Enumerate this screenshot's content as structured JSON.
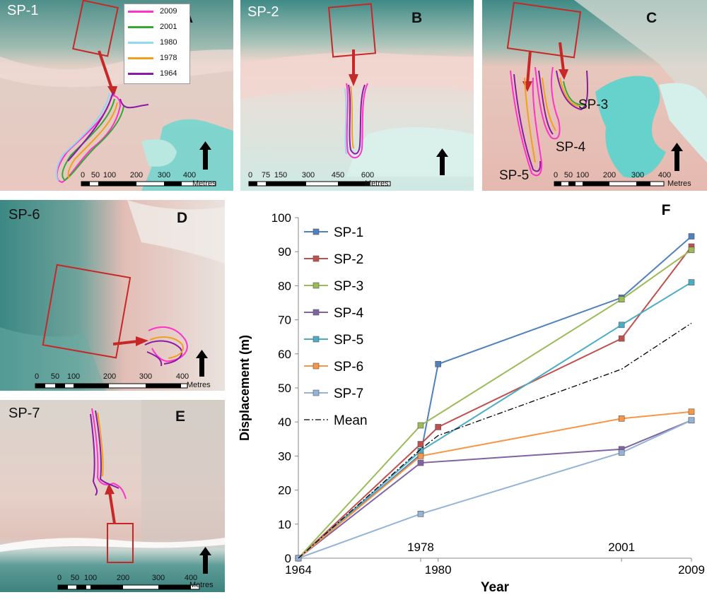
{
  "panels": {
    "a": {
      "title": "SP-1",
      "letter": "A",
      "ticks": [
        "0",
        "50",
        "100",
        "200",
        "300",
        "400"
      ],
      "unit": "Metres"
    },
    "b": {
      "title": "SP-2",
      "letter": "B",
      "ticks": [
        "0",
        "75",
        "150",
        "300",
        "450",
        "600"
      ],
      "unit": "Metres"
    },
    "c": {
      "title": "",
      "letter": "C",
      "ticks": [
        "0",
        "50",
        "100",
        "200",
        "300",
        "400"
      ],
      "unit": "Metres",
      "labels": [
        "SP-3",
        "SP-4",
        "SP-5"
      ]
    },
    "d": {
      "title": "SP-6",
      "letter": "D",
      "ticks": [
        "0",
        "50",
        "100",
        "200",
        "300",
        "400"
      ],
      "unit": "Metres"
    },
    "e": {
      "title": "SP-7",
      "letter": "E",
      "ticks": [
        "0",
        "50",
        "100",
        "200",
        "300",
        "400"
      ],
      "unit": "Metres"
    }
  },
  "year_legend": [
    {
      "label": "2009",
      "color": "#ff33cc"
    },
    {
      "label": "2001",
      "color": "#33a833"
    },
    {
      "label": "1980",
      "color": "#8fd9f2"
    },
    {
      "label": "1978",
      "color": "#f0a020"
    },
    {
      "label": "1964",
      "color": "#8a1aa8"
    }
  ],
  "chart_data": {
    "type": "line",
    "panel_letter": "F",
    "xlabel": "Year",
    "ylabel": "Displacement (m)",
    "ylim": [
      0,
      100
    ],
    "yticks": [
      0,
      10,
      20,
      30,
      40,
      50,
      60,
      70,
      80,
      90,
      100
    ],
    "xlim": [
      1964,
      2009
    ],
    "xticks_bottom": [
      "1964",
      "1980",
      "2009"
    ],
    "xticks_top": [
      "1978",
      "2001"
    ],
    "series": [
      {
        "name": "SP-1",
        "color": "#4f81bd",
        "points": [
          [
            1964,
            0
          ],
          [
            1978,
            30.5
          ],
          [
            1980,
            57
          ],
          [
            2001,
            76.5
          ],
          [
            2009,
            94.5
          ]
        ]
      },
      {
        "name": "SP-2",
        "color": "#c0504d",
        "points": [
          [
            1964,
            0
          ],
          [
            1978,
            33.5
          ],
          [
            1980,
            38.5
          ],
          [
            2001,
            64.5
          ],
          [
            2009,
            91.5
          ]
        ]
      },
      {
        "name": "SP-3",
        "color": "#9bbb59",
        "points": [
          [
            1964,
            0
          ],
          [
            1978,
            39
          ],
          [
            2001,
            76
          ],
          [
            2009,
            90.5
          ]
        ]
      },
      {
        "name": "SP-4",
        "color": "#8064a2",
        "points": [
          [
            1964,
            0
          ],
          [
            1978,
            28
          ],
          [
            2001,
            32
          ],
          [
            2009,
            40.5
          ]
        ]
      },
      {
        "name": "SP-5",
        "color": "#4bacc6",
        "points": [
          [
            1964,
            0
          ],
          [
            1978,
            31.5
          ],
          [
            2001,
            68.5
          ],
          [
            2009,
            81
          ]
        ]
      },
      {
        "name": "SP-6",
        "color": "#f79646",
        "points": [
          [
            1964,
            0
          ],
          [
            1978,
            30
          ],
          [
            2001,
            41
          ],
          [
            2009,
            43
          ]
        ]
      },
      {
        "name": "SP-7",
        "color": "#95b3d7",
        "points": [
          [
            1964,
            0
          ],
          [
            1978,
            13
          ],
          [
            2001,
            31
          ],
          [
            2009,
            40.5
          ]
        ]
      },
      {
        "name": "Mean",
        "color": "#000000",
        "dashed": true,
        "points": [
          [
            1964,
            0
          ],
          [
            1978,
            32
          ],
          [
            1980,
            36
          ],
          [
            2001,
            55.5
          ],
          [
            2009,
            69
          ]
        ]
      }
    ]
  }
}
